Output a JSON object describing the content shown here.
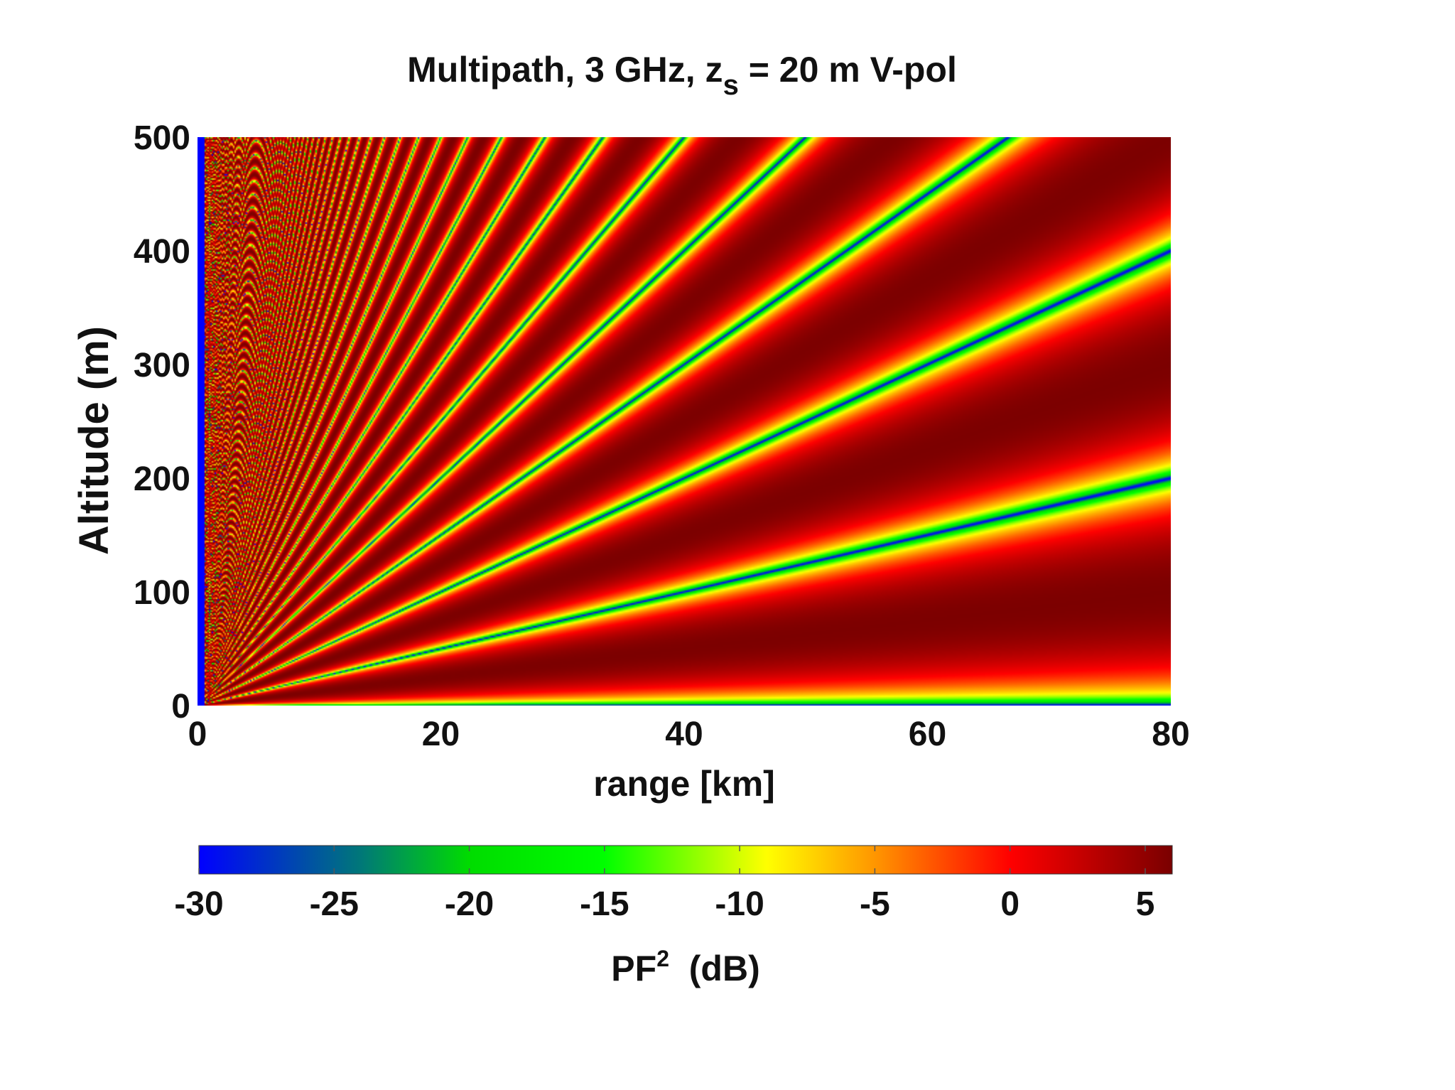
{
  "chart_data": {
    "type": "heatmap",
    "title": {
      "main": "Multipath, 3 GHz, z",
      "subscript": "s",
      "suffix": " = 20 m V-pol"
    },
    "xlabel": "range [km]",
    "ylabel": "Altitude (m)",
    "xlim": [
      0,
      80
    ],
    "ylim": [
      0,
      500
    ],
    "xticks": [
      "0",
      "20",
      "40",
      "60",
      "80"
    ],
    "yticks": [
      "0",
      "100",
      "200",
      "300",
      "400",
      "500"
    ],
    "grid": false,
    "colorbar": {
      "orientation": "horizontal",
      "placement": "bottom",
      "label_main": "PF",
      "label_sup": "2",
      "label_suffix": "  (dB)",
      "range": [
        -30,
        6
      ],
      "ticks": [
        "-30",
        "-25",
        "-20",
        "-15",
        "-10",
        "-5",
        "0",
        "5"
      ],
      "colors": [
        "#0000ff",
        "#00b400",
        "#00ff00",
        "#ffff00",
        "#ff9a00",
        "#ff0000",
        "#7a0000"
      ]
    },
    "model": {
      "description_in_units": "two-ray interference pattern",
      "frequency_ghz": 3,
      "source_height_m": 20,
      "polarization": "V",
      "null_altitude_slopes_m_per_km": [
        2.5,
        5,
        7.5,
        10,
        12.5,
        15,
        17.5,
        20,
        22.5,
        25,
        27.5,
        30,
        32.5,
        35,
        37.5,
        40
      ],
      "near_field_low_value_band_km": [
        0,
        1
      ],
      "surface_null_altitude_m": 0
    }
  }
}
